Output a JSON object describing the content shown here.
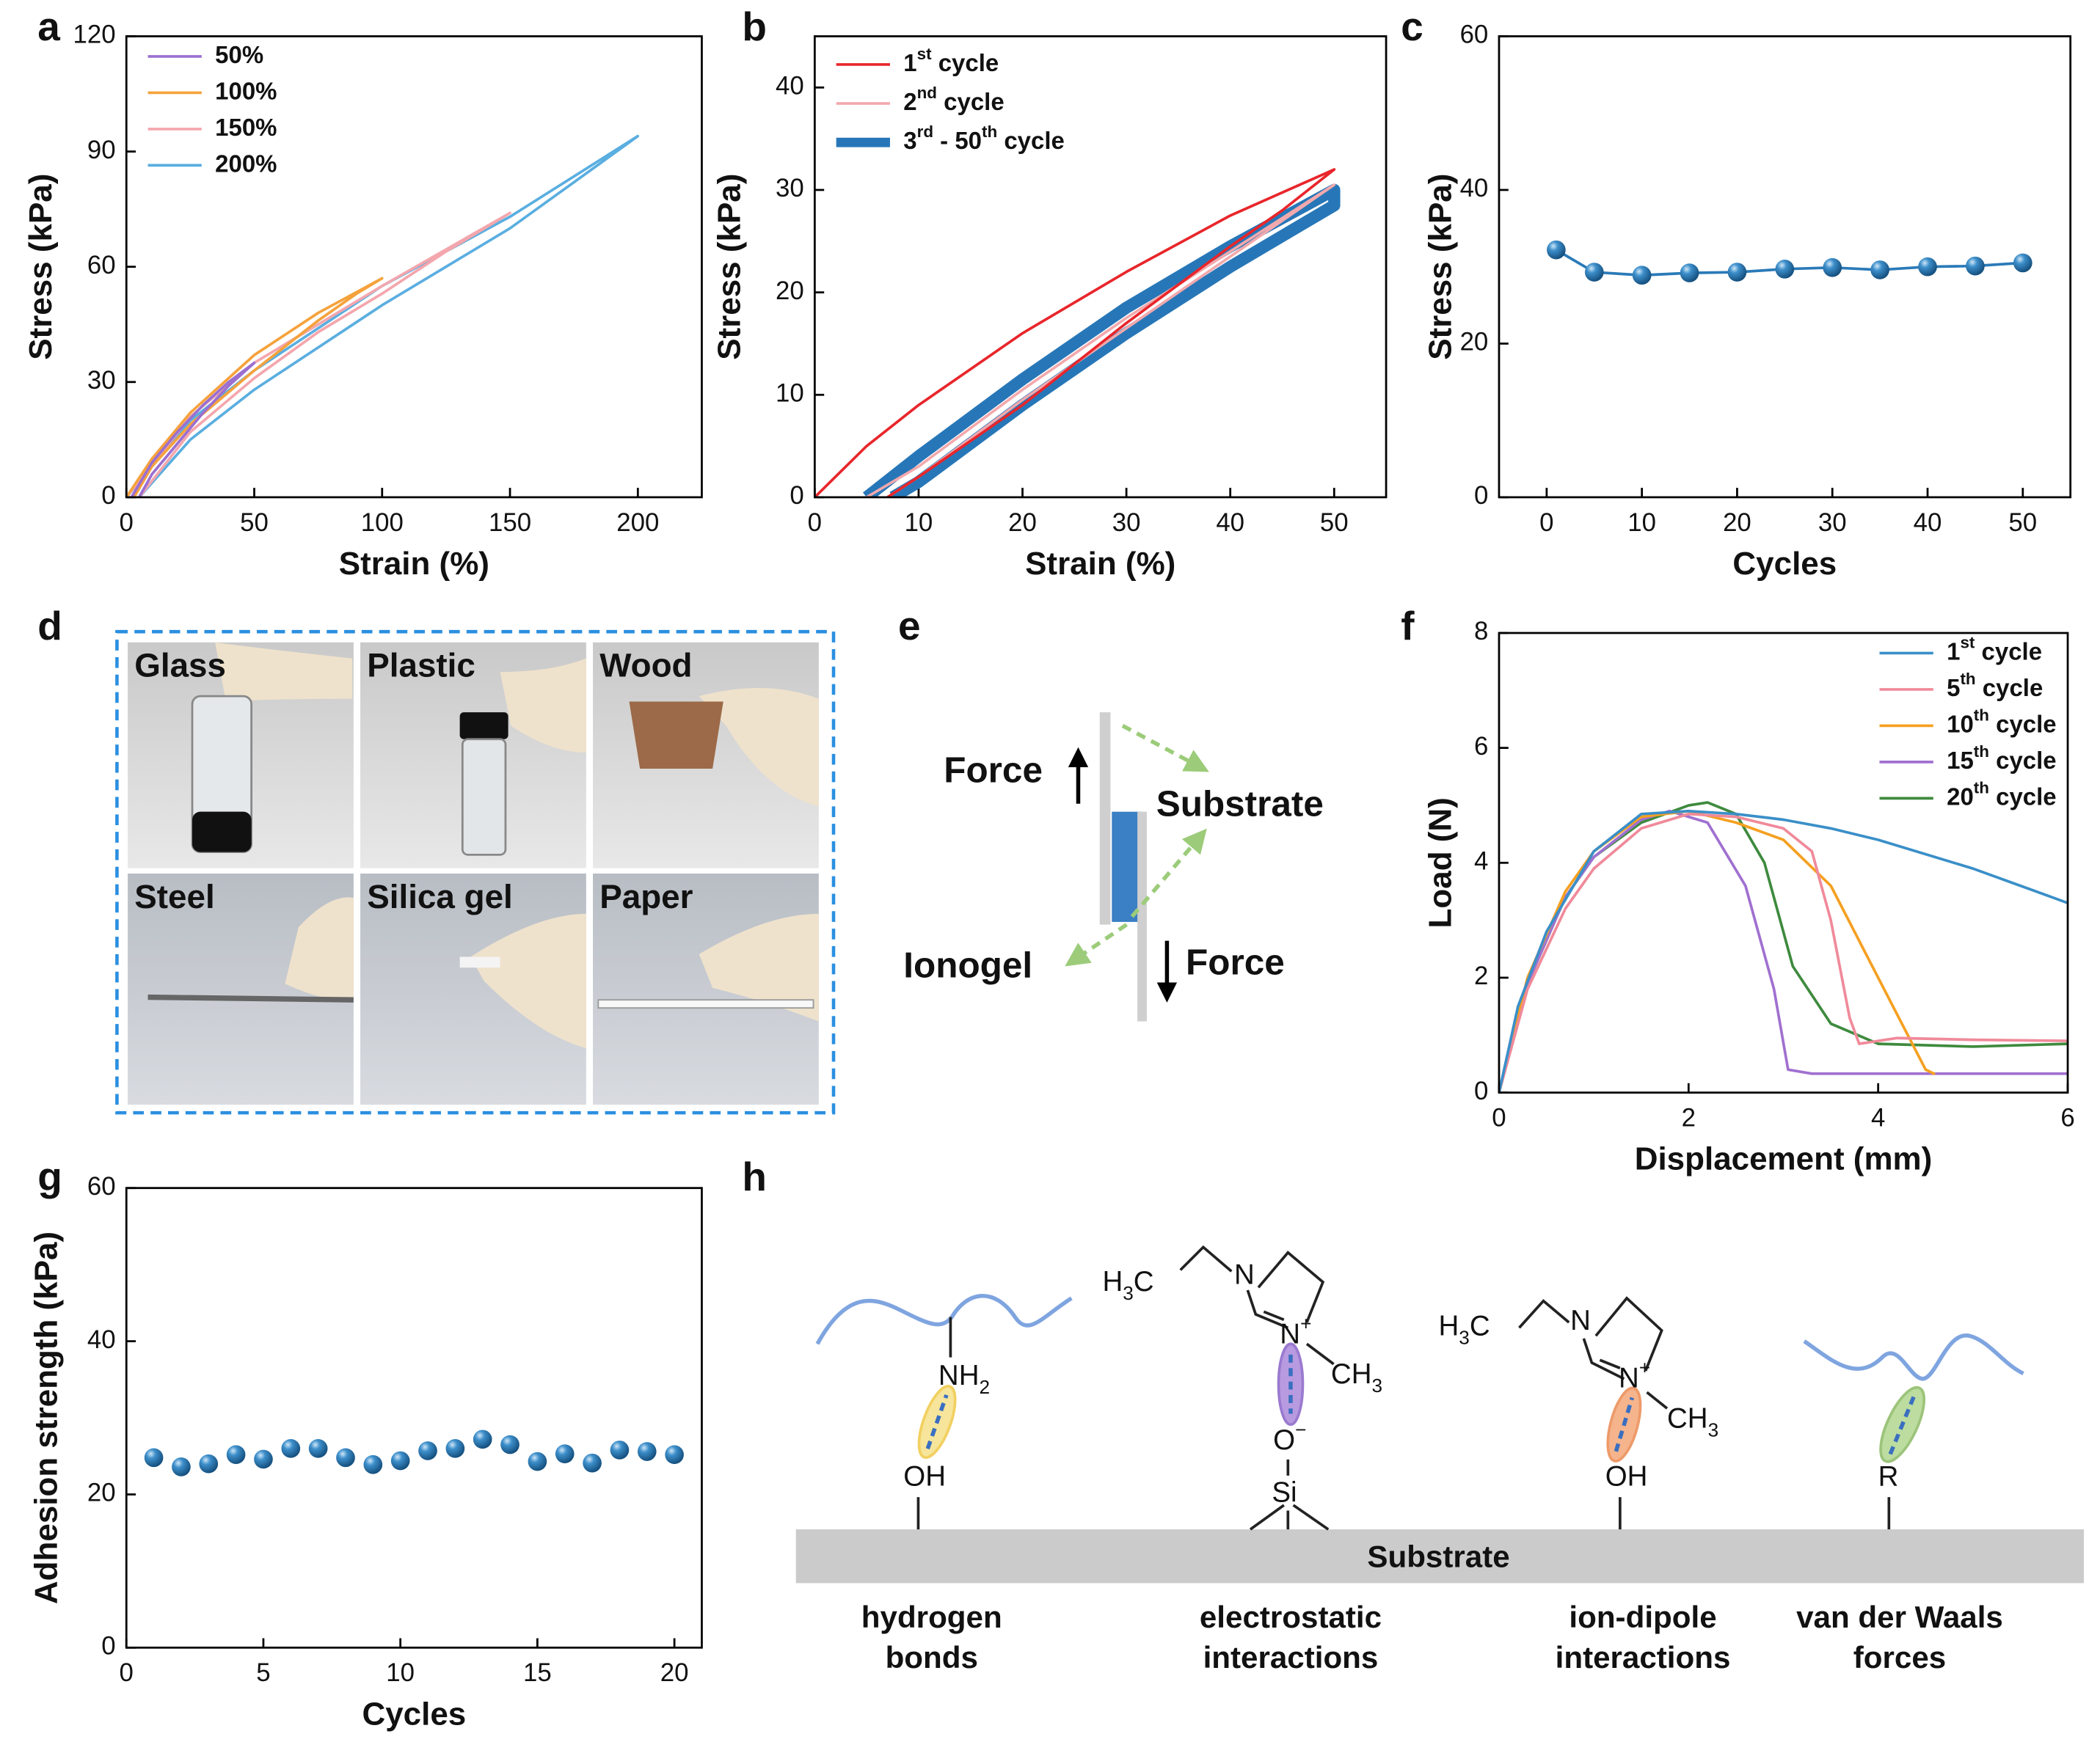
{
  "chart_data": [
    {
      "panel_label": "a",
      "type": "line",
      "xlabel": "Strain (%)",
      "ylabel": "Stress (kPa)",
      "xlim": [
        0,
        225
      ],
      "xticks": [
        0,
        50,
        100,
        150,
        200
      ],
      "ylim": [
        0,
        120
      ],
      "yticks": [
        0,
        30,
        60,
        90,
        120
      ],
      "legend": "upper left",
      "series": [
        {
          "name": "50%",
          "color": "#9b6fd0",
          "x": [
            2,
            10,
            20,
            30,
            40,
            50,
            40,
            30,
            20,
            10,
            5
          ],
          "values": [
            0,
            9,
            17,
            24,
            30,
            35,
            29,
            22,
            14,
            6,
            0
          ]
        },
        {
          "name": "100%",
          "color": "#f5a23c",
          "x": [
            0,
            10,
            25,
            50,
            75,
            100,
            90,
            75,
            50,
            25,
            10,
            3
          ],
          "values": [
            0,
            10,
            22,
            37,
            48,
            57,
            53,
            46,
            33,
            19,
            8,
            0
          ]
        },
        {
          "name": "150%",
          "color": "#f4a6ad",
          "x": [
            0,
            25,
            50,
            100,
            150,
            125,
            100,
            75,
            50,
            25,
            5
          ],
          "values": [
            0,
            21,
            35,
            55,
            74,
            64,
            53,
            43,
            31,
            17,
            0
          ]
        },
        {
          "name": "200%",
          "color": "#5aaee0",
          "x": [
            0,
            25,
            50,
            100,
            150,
            200,
            175,
            150,
            100,
            50,
            25,
            5
          ],
          "values": [
            0,
            20,
            33,
            55,
            73,
            94,
            82,
            70,
            50,
            28,
            15,
            0
          ]
        }
      ]
    },
    {
      "panel_label": "b",
      "type": "line",
      "xlabel": "Strain (%)",
      "ylabel": "Stress (kPa)",
      "xlim": [
        0,
        55
      ],
      "xticks": [
        0,
        10,
        20,
        30,
        40,
        50
      ],
      "ylim": [
        0,
        45
      ],
      "yticks": [
        0,
        10,
        20,
        30,
        40
      ],
      "legend": "upper left",
      "series": [
        {
          "name": "1st cycle",
          "color": "#e8262b",
          "x": [
            0,
            5,
            10,
            20,
            30,
            40,
            50,
            45,
            40,
            30,
            20,
            10,
            7
          ],
          "values": [
            0,
            5,
            9,
            16,
            22,
            27.5,
            32,
            28,
            24.5,
            17,
            9,
            2,
            0
          ]
        },
        {
          "name": "2nd cycle",
          "color": "#f2a9ad",
          "x": [
            5,
            10,
            20,
            30,
            40,
            50,
            40,
            30,
            20,
            10,
            7
          ],
          "values": [
            0,
            3,
            10.5,
            17.5,
            24,
            30.5,
            23.5,
            16.5,
            9.5,
            2,
            0
          ]
        },
        {
          "name": "3rd - 50th cycle",
          "color": "#2777b8",
          "x": [
            5,
            10,
            20,
            30,
            40,
            50,
            50,
            40,
            30,
            20,
            10,
            7.5
          ],
          "values": [
            0,
            4,
            11.5,
            18.5,
            24.5,
            30,
            28.5,
            22.5,
            16,
            9,
            1.5,
            0
          ]
        }
      ]
    },
    {
      "panel_label": "c",
      "type": "line",
      "markers": true,
      "xlabel": "Cycles",
      "ylabel": "Stress (kPa)",
      "xlim": [
        -5,
        55
      ],
      "xticks": [
        0,
        10,
        20,
        30,
        40,
        50
      ],
      "ylim": [
        0,
        60
      ],
      "yticks": [
        0,
        20,
        40,
        60
      ],
      "color": "#2a7ab8",
      "x": [
        1,
        5,
        10,
        15,
        20,
        25,
        30,
        35,
        40,
        45,
        50
      ],
      "values": [
        32.2,
        29.3,
        28.9,
        29.2,
        29.3,
        29.7,
        29.9,
        29.6,
        30.0,
        30.1,
        30.5
      ]
    },
    {
      "panel_label": "f",
      "type": "line",
      "xlabel": "Displacement (mm)",
      "ylabel": "Load (N)",
      "xlim": [
        0,
        6
      ],
      "xticks": [
        0,
        2,
        4,
        6
      ],
      "ylim": [
        0,
        8
      ],
      "yticks": [
        0,
        2,
        4,
        6,
        8
      ],
      "legend": "upper right",
      "series": [
        {
          "name": "1st cycle",
          "color": "#3a8fc8",
          "x": [
            0,
            0.2,
            0.5,
            1,
            1.5,
            2,
            2.5,
            3,
            3.5,
            4,
            4.5,
            5,
            5.5,
            6
          ],
          "values": [
            0,
            1.5,
            2.8,
            4.2,
            4.85,
            4.9,
            4.85,
            4.75,
            4.6,
            4.4,
            4.15,
            3.9,
            3.6,
            3.3
          ]
        },
        {
          "name": "5th cycle",
          "color": "#f08a9a",
          "x": [
            0,
            0.3,
            0.7,
            1,
            1.5,
            2,
            2.5,
            3,
            3.3,
            3.5,
            3.7,
            3.8,
            4.2,
            5,
            6
          ],
          "values": [
            0,
            1.8,
            3.2,
            3.9,
            4.6,
            4.85,
            4.8,
            4.6,
            4.2,
            3,
            1.3,
            0.85,
            0.95,
            0.92,
            0.9
          ]
        },
        {
          "name": "10th cycle",
          "color": "#f5a020",
          "x": [
            0,
            0.3,
            0.7,
            1,
            1.5,
            2,
            2.5,
            3,
            3.5,
            4,
            4.5,
            4.6
          ],
          "values": [
            0,
            2,
            3.5,
            4.2,
            4.8,
            4.9,
            4.7,
            4.4,
            3.6,
            2,
            0.4,
            0.32
          ]
        },
        {
          "name": "15th cycle",
          "color": "#a070d0",
          "x": [
            0,
            0.3,
            0.7,
            1,
            1.5,
            1.8,
            2.2,
            2.6,
            2.9,
            3.05,
            3.3,
            6
          ],
          "values": [
            0,
            1.9,
            3.4,
            4.1,
            4.75,
            4.9,
            4.7,
            3.6,
            1.8,
            0.4,
            0.33,
            0.33
          ]
        },
        {
          "name": "20th cycle",
          "color": "#3e8a3e",
          "x": [
            0,
            0.3,
            0.7,
            1,
            1.5,
            2,
            2.2,
            2.5,
            2.8,
            3.1,
            3.5,
            4,
            5,
            6
          ],
          "values": [
            0,
            1.9,
            3.4,
            4.1,
            4.7,
            5,
            5.05,
            4.85,
            4,
            2.2,
            1.2,
            0.85,
            0.8,
            0.85
          ]
        }
      ]
    },
    {
      "panel_label": "g",
      "type": "scatter",
      "xlabel": "Cycles",
      "ylabel": "Adhesion strength (kPa)",
      "xlim": [
        0,
        21
      ],
      "xticks": [
        0,
        5,
        10,
        15,
        20
      ],
      "ylim": [
        0,
        60
      ],
      "yticks": [
        0,
        20,
        40,
        60
      ],
      "color": "#2a7ab8",
      "x": [
        1,
        2,
        3,
        4,
        5,
        6,
        7,
        8,
        9,
        10,
        11,
        12,
        13,
        14,
        15,
        16,
        17,
        18,
        19,
        20
      ],
      "values": [
        24.8,
        23.6,
        24,
        25.2,
        24.6,
        26,
        26,
        24.8,
        23.9,
        24.4,
        25.7,
        26,
        27.2,
        26.5,
        24.3,
        25.3,
        24.1,
        25.8,
        25.6,
        25.2
      ]
    }
  ],
  "panel_d": {
    "panel_label": "d",
    "photos": [
      "Glass",
      "Plastic",
      "Wood",
      "Steel",
      "Silica gel",
      "Paper"
    ]
  },
  "panel_e": {
    "panel_label": "e",
    "force_up": "Force",
    "substrate": "Substrate",
    "ionogel": "Ionogel",
    "force_down": "Force"
  },
  "panel_h": {
    "panel_label": "h",
    "substrate": "Substrate",
    "atoms": {
      "nh2": "NH2",
      "oh_1": "OH",
      "h3c_1": "H3C",
      "n_1": "N",
      "n_plus_1": "N+",
      "ch3_1": "CH3",
      "o_minus": "O−",
      "si": "Si",
      "h3c_2": "H3C",
      "n_2": "N",
      "n_plus_2": "N+",
      "ch3_2": "CH3",
      "oh_2": "OH",
      "r": "R"
    },
    "captions": [
      [
        "hydrogen",
        "bonds"
      ],
      [
        "electrostatic",
        "interactions"
      ],
      [
        "ion-dipole",
        "interactions"
      ],
      [
        "van der Waals",
        "forces"
      ]
    ]
  }
}
